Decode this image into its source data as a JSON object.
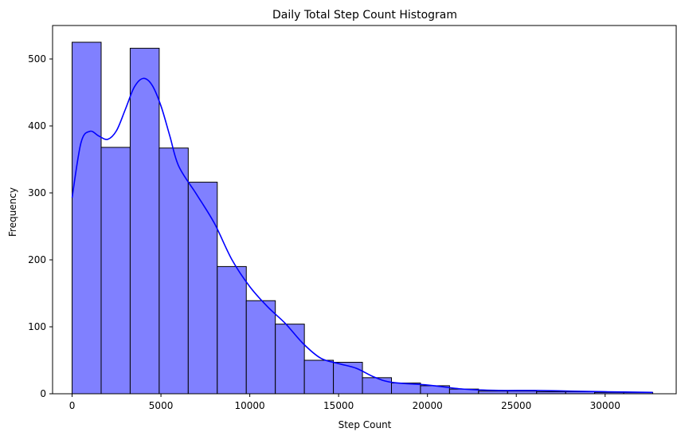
{
  "chart_data": {
    "type": "bar",
    "title": "Daily Total Step Count Histogram",
    "xlabel": "Step Count",
    "ylabel": "Frequency",
    "xlim": [
      -1100,
      34000
    ],
    "ylim": [
      0,
      550
    ],
    "grid": false,
    "legend": "none",
    "x_ticks": [
      0,
      5000,
      10000,
      15000,
      20000,
      25000,
      30000
    ],
    "y_ticks": [
      0,
      100,
      200,
      300,
      400,
      500
    ],
    "bin_edges": [
      0,
      1634,
      3268,
      4902,
      6536,
      8170,
      9804,
      11438,
      13072,
      14706,
      16340,
      17974,
      19608,
      21242,
      22876,
      24510,
      26144,
      27778,
      29412,
      31046,
      32680
    ],
    "counts": [
      525,
      368,
      516,
      367,
      316,
      190,
      139,
      104,
      50,
      47,
      24,
      16,
      12,
      7,
      4,
      4,
      3,
      3,
      2,
      2
    ],
    "kde": {
      "x": [
        0,
        500,
        1000,
        1500,
        2000,
        2500,
        3000,
        3500,
        4000,
        4500,
        5000,
        5500,
        6000,
        7000,
        8000,
        9000,
        10000,
        11000,
        12000,
        13000,
        14000,
        15000,
        16000,
        17000,
        18000,
        20000,
        22000,
        24000,
        26000,
        28000,
        30000,
        32680
      ],
      "y": [
        293,
        375,
        392,
        385,
        380,
        393,
        425,
        458,
        471,
        461,
        430,
        385,
        340,
        298,
        255,
        200,
        160,
        130,
        105,
        75,
        53,
        45,
        38,
        25,
        17,
        13,
        7,
        5,
        5,
        4,
        3,
        2
      ]
    },
    "colors": {
      "bar_fill": "#8080ff",
      "bar_edge": "#000000",
      "kde_line": "#0000ff"
    }
  }
}
